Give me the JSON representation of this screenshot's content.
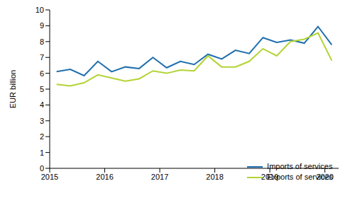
{
  "chart_data": {
    "type": "line",
    "y_label": "EUR billion",
    "x": [
      2015.125,
      2015.375,
      2015.625,
      2015.875,
      2016.125,
      2016.375,
      2016.625,
      2016.875,
      2017.125,
      2017.375,
      2017.625,
      2017.875,
      2018.125,
      2018.375,
      2018.625,
      2018.875,
      2019.125,
      2019.375,
      2019.625,
      2019.875,
      2020.125
    ],
    "series": [
      {
        "name": "Imports of services",
        "color": "#1f6fad",
        "values": [
          6.1,
          6.25,
          5.85,
          6.75,
          6.1,
          6.4,
          6.3,
          7.0,
          6.35,
          6.75,
          6.55,
          7.2,
          6.9,
          7.45,
          7.25,
          8.25,
          7.95,
          8.1,
          7.9,
          8.95,
          7.8
        ]
      },
      {
        "name": "Exports of services",
        "color": "#b3d334",
        "values": [
          5.3,
          5.2,
          5.4,
          5.9,
          5.7,
          5.5,
          5.65,
          6.15,
          6.0,
          6.2,
          6.15,
          7.1,
          6.4,
          6.4,
          6.75,
          7.55,
          7.1,
          8.0,
          8.15,
          8.55,
          6.8
        ]
      }
    ],
    "xlim": [
      2015,
      2020.25
    ],
    "xticks": [
      2015,
      2016,
      2017,
      2018,
      2019,
      2020
    ],
    "ylim": [
      0,
      10
    ],
    "yticks": [
      0,
      1,
      2,
      3,
      4,
      5,
      6,
      7,
      8,
      9,
      10
    ],
    "grid": false,
    "legend": "lower right"
  }
}
